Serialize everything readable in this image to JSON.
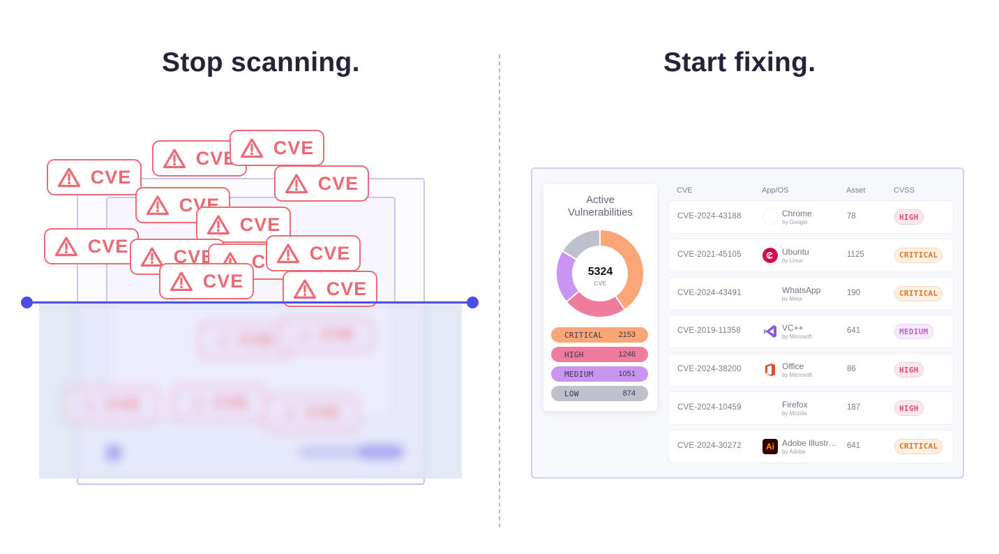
{
  "headings": {
    "left": "Stop scanning.",
    "right": "Start fixing."
  },
  "left_scene": {
    "tag_label": "CVE",
    "tag_icon": "warning-triangle-icon",
    "tag_color": "#ec6a75",
    "scan_line_color": "#4b4fe6"
  },
  "donut": {
    "title": "Active\nVulnerabilities",
    "total": "5324",
    "total_label": "CVE",
    "segments": [
      {
        "label": "CRITICAL",
        "value": 2153,
        "color": "#fba677"
      },
      {
        "label": "HIGH",
        "value": 1246,
        "color": "#f07c9d"
      },
      {
        "label": "MEDIUM",
        "value": 1051,
        "color": "#c896f0"
      },
      {
        "label": "LOW",
        "value": 874,
        "color": "#bec1cc"
      }
    ]
  },
  "table": {
    "columns": [
      "CVE",
      "App/OS",
      "Asset",
      "CVSS"
    ],
    "rows": [
      {
        "cve": "CVE-2024-43188",
        "app": "Chrome",
        "by": "by Google",
        "asset": "78",
        "cvss": "HIGH",
        "icon": "chrome-icon"
      },
      {
        "cve": "CVE-2021-45105",
        "app": "Ubuntu",
        "by": "by Linux",
        "asset": "1125",
        "cvss": "CRITICAL",
        "icon": "debian-icon"
      },
      {
        "cve": "CVE-2024-43491",
        "app": "WhatsApp",
        "by": "by Meta",
        "asset": "190",
        "cvss": "CRITICAL",
        "icon": "whatsapp-icon"
      },
      {
        "cve": "CVE-2019-11358",
        "app": "VC++",
        "by": "by Microsoft",
        "asset": "641",
        "cvss": "MEDIUM",
        "icon": "visual-studio-icon"
      },
      {
        "cve": "CVE-2024-38200",
        "app": "Office",
        "by": "by Microsoft",
        "asset": "86",
        "cvss": "HIGH",
        "icon": "office-icon"
      },
      {
        "cve": "CVE-2024-10459",
        "app": "Firefox",
        "by": "by Mozilla",
        "asset": "187",
        "cvss": "HIGH",
        "icon": "firefox-icon"
      },
      {
        "cve": "CVE-2024-30272",
        "app": "Adobe Illustrator",
        "by": "by Adobe",
        "asset": "641",
        "cvss": "CRITICAL",
        "icon": "illustrator-icon",
        "logo_text": "Ai"
      }
    ]
  }
}
